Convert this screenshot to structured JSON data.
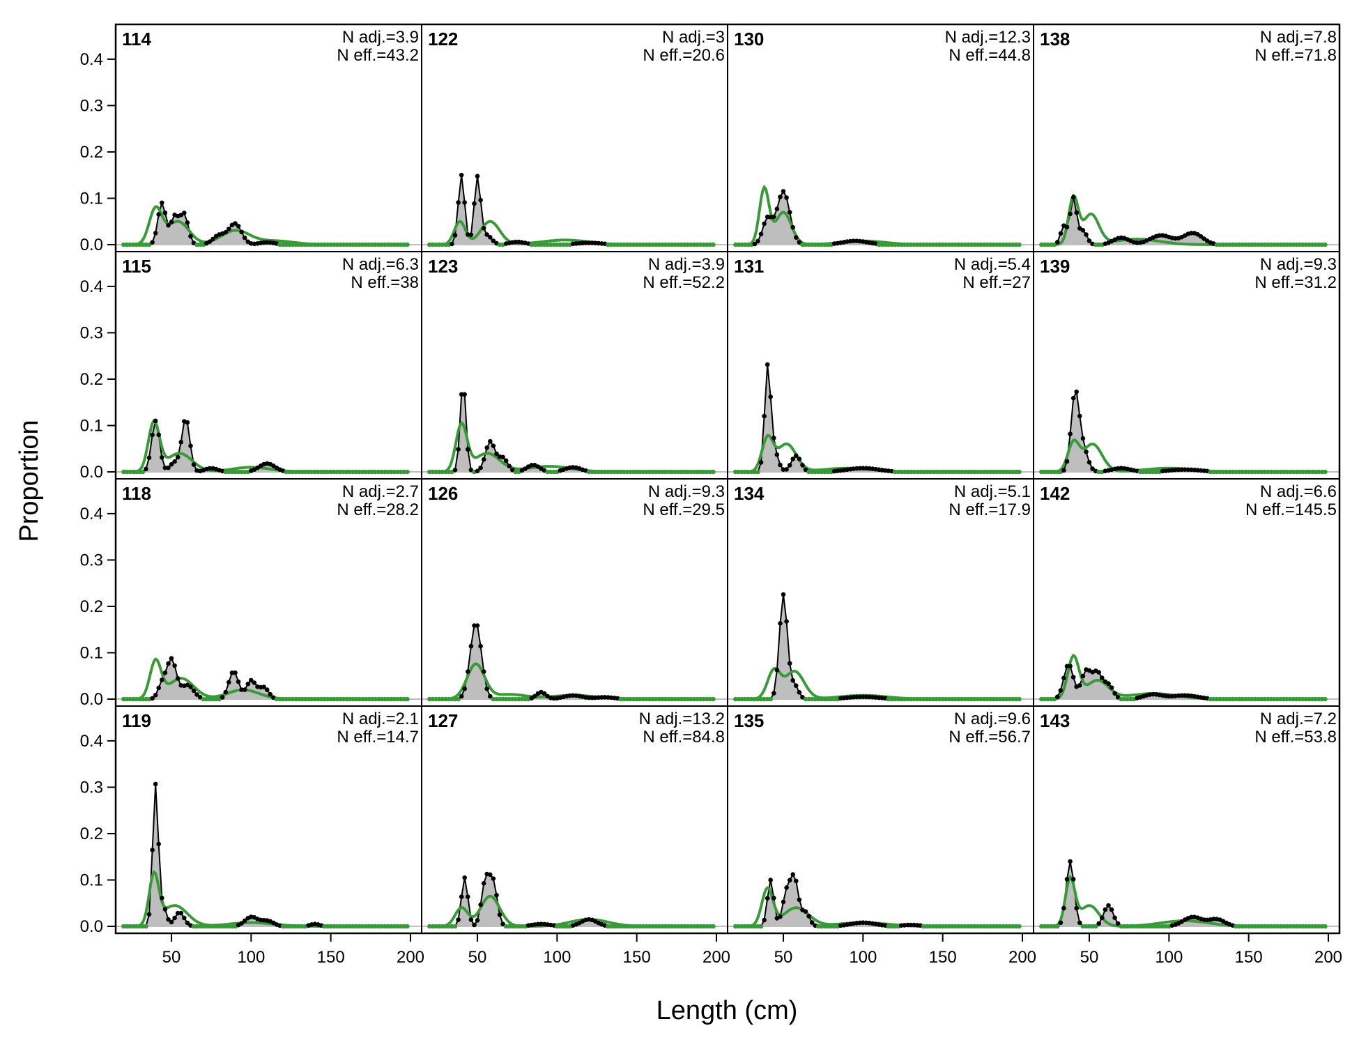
{
  "chart_data": {
    "type": "line",
    "xlabel": "Length (cm)",
    "ylabel": "Proportion",
    "xlim": [
      15,
      207
    ],
    "ylim": [
      -0.015,
      0.475
    ],
    "x_ticks": [
      50,
      100,
      150,
      200
    ],
    "y_ticks": [
      0.0,
      0.1,
      0.2,
      0.3,
      0.4
    ],
    "y_tick_labels": [
      "0.0",
      "0.1",
      "0.2",
      "0.3",
      "0.4"
    ],
    "grid": false,
    "layout": {
      "rows": 4,
      "cols": 4,
      "order": "column-major"
    },
    "colors": {
      "observed": "#000000",
      "observed_fill": "#bebebe",
      "expected": "#3a9a3a",
      "zero_line": "#bebebe"
    },
    "series_names": [
      "observed",
      "expected"
    ],
    "panels": [
      {
        "label": "114",
        "n_adj": "N adj.=3.9",
        "n_eff": "N eff.=43.2",
        "observed_peaks": [
          [
            44,
            0.09,
            2.5
          ],
          [
            52,
            0.06,
            2.5
          ],
          [
            58,
            0.065,
            2.5
          ],
          [
            90,
            0.045,
            4
          ],
          [
            80,
            0.02,
            4
          ],
          [
            110,
            0.005,
            5
          ]
        ],
        "expected_peaks": [
          [
            40,
            0.075,
            4
          ],
          [
            54,
            0.05,
            7
          ],
          [
            90,
            0.03,
            9
          ],
          [
            115,
            0.008,
            12
          ]
        ]
      },
      {
        "label": "115",
        "n_adj": "N adj.=6.3",
        "n_eff": "N eff.=38",
        "observed_peaks": [
          [
            40,
            0.11,
            2.5
          ],
          [
            59,
            0.115,
            2.5
          ],
          [
            52,
            0.02,
            3
          ],
          [
            75,
            0.008,
            4
          ],
          [
            110,
            0.018,
            5
          ]
        ],
        "expected_peaks": [
          [
            39,
            0.105,
            3.5
          ],
          [
            55,
            0.04,
            8
          ],
          [
            100,
            0.01,
            12
          ]
        ]
      },
      {
        "label": "118",
        "n_adj": "N adj.=2.7",
        "n_eff": "N eff.=28.2",
        "observed_peaks": [
          [
            50,
            0.085,
            3
          ],
          [
            44,
            0.03,
            2.5
          ],
          [
            60,
            0.03,
            4
          ],
          [
            89,
            0.06,
            3
          ],
          [
            100,
            0.04,
            3
          ],
          [
            108,
            0.025,
            3
          ]
        ],
        "expected_peaks": [
          [
            40,
            0.08,
            3.5
          ],
          [
            56,
            0.045,
            8
          ],
          [
            95,
            0.02,
            10
          ]
        ]
      },
      {
        "label": "119",
        "n_adj": "N adj.=2.1",
        "n_eff": "N eff.=14.7",
        "observed_peaks": [
          [
            40,
            0.305,
            1.8
          ],
          [
            45,
            0.04,
            2
          ],
          [
            55,
            0.03,
            3
          ],
          [
            100,
            0.02,
            4
          ],
          [
            110,
            0.012,
            4
          ],
          [
            140,
            0.005,
            3
          ]
        ],
        "expected_peaks": [
          [
            39,
            0.105,
            3
          ],
          [
            52,
            0.045,
            8
          ],
          [
            100,
            0.008,
            14
          ]
        ]
      },
      {
        "label": "122",
        "n_adj": "N adj.=3",
        "n_eff": "N eff.=20.6",
        "observed_peaks": [
          [
            40,
            0.15,
            2
          ],
          [
            50,
            0.145,
            2
          ],
          [
            56,
            0.02,
            3
          ],
          [
            75,
            0.006,
            5
          ],
          [
            120,
            0.004,
            8
          ]
        ],
        "expected_peaks": [
          [
            39,
            0.05,
            3.5
          ],
          [
            58,
            0.05,
            6
          ],
          [
            105,
            0.01,
            15
          ]
        ]
      },
      {
        "label": "123",
        "n_adj": "N adj.=3.9",
        "n_eff": "N eff.=52.2",
        "observed_peaks": [
          [
            41,
            0.195,
            1.8
          ],
          [
            58,
            0.065,
            3
          ],
          [
            66,
            0.03,
            3
          ],
          [
            85,
            0.015,
            4
          ],
          [
            110,
            0.01,
            5
          ]
        ],
        "expected_peaks": [
          [
            40,
            0.1,
            3.5
          ],
          [
            56,
            0.04,
            8
          ],
          [
            95,
            0.012,
            14
          ]
        ]
      },
      {
        "label": "126",
        "n_adj": "N adj.=9.3",
        "n_eff": "N eff.=29.5",
        "observed_peaks": [
          [
            49,
            0.165,
            3.5
          ],
          [
            90,
            0.015,
            3
          ],
          [
            110,
            0.008,
            6
          ],
          [
            130,
            0.004,
            6
          ]
        ],
        "expected_peaks": [
          [
            49,
            0.075,
            5.5
          ],
          [
            70,
            0.01,
            10
          ],
          [
            110,
            0.008,
            15
          ]
        ]
      },
      {
        "label": "127",
        "n_adj": "N adj.=13.2",
        "n_eff": "N eff.=84.8",
        "observed_peaks": [
          [
            42,
            0.105,
            2
          ],
          [
            55,
            0.095,
            2.5
          ],
          [
            60,
            0.09,
            2.5
          ],
          [
            120,
            0.015,
            5
          ],
          [
            90,
            0.005,
            6
          ]
        ],
        "expected_peaks": [
          [
            40,
            0.04,
            4
          ],
          [
            58,
            0.065,
            6
          ],
          [
            120,
            0.015,
            12
          ]
        ]
      },
      {
        "label": "130",
        "n_adj": "N adj.=12.3",
        "n_eff": "N eff.=44.8",
        "observed_peaks": [
          [
            50,
            0.115,
            4
          ],
          [
            40,
            0.055,
            3
          ],
          [
            95,
            0.008,
            8
          ]
        ],
        "expected_peaks": [
          [
            38,
            0.12,
            3
          ],
          [
            50,
            0.07,
            5
          ],
          [
            100,
            0.008,
            14
          ]
        ]
      },
      {
        "label": "131",
        "n_adj": "N adj.=5.4",
        "n_eff": "N eff.=27",
        "observed_peaks": [
          [
            40,
            0.195,
            1.8
          ],
          [
            43,
            0.06,
            3
          ],
          [
            58,
            0.035,
            3
          ],
          [
            100,
            0.008,
            10
          ]
        ],
        "expected_peaks": [
          [
            40,
            0.07,
            3.5
          ],
          [
            52,
            0.06,
            6
          ],
          [
            90,
            0.008,
            15
          ]
        ]
      },
      {
        "label": "134",
        "n_adj": "N adj.=5.1",
        "n_eff": "N eff.=17.9",
        "observed_peaks": [
          [
            50,
            0.225,
            2.5
          ],
          [
            57,
            0.03,
            2.5
          ],
          [
            100,
            0.005,
            10
          ]
        ],
        "expected_peaks": [
          [
            44,
            0.06,
            4
          ],
          [
            57,
            0.06,
            6
          ],
          [
            100,
            0.008,
            15
          ]
        ]
      },
      {
        "label": "135",
        "n_adj": "N adj.=9.6",
        "n_eff": "N eff.=56.7",
        "observed_peaks": [
          [
            42,
            0.1,
            2
          ],
          [
            52,
            0.07,
            2.5
          ],
          [
            57,
            0.1,
            2.5
          ],
          [
            64,
            0.03,
            2.5
          ],
          [
            100,
            0.008,
            8
          ],
          [
            130,
            0.003,
            6
          ]
        ],
        "expected_peaks": [
          [
            40,
            0.08,
            3.5
          ],
          [
            58,
            0.04,
            8
          ],
          [
            100,
            0.008,
            15
          ]
        ]
      },
      {
        "label": "138",
        "n_adj": "N adj.=7.8",
        "n_eff": "N eff.=71.8",
        "observed_peaks": [
          [
            40,
            0.1,
            2
          ],
          [
            34,
            0.04,
            2
          ],
          [
            46,
            0.03,
            2.5
          ],
          [
            70,
            0.015,
            5
          ],
          [
            95,
            0.02,
            7
          ],
          [
            115,
            0.025,
            6
          ]
        ],
        "expected_peaks": [
          [
            40,
            0.1,
            3
          ],
          [
            51,
            0.065,
            5
          ],
          [
            80,
            0.012,
            14
          ]
        ]
      },
      {
        "label": "139",
        "n_adj": "N adj.=9.3",
        "n_eff": "N eff.=31.2",
        "observed_peaks": [
          [
            41,
            0.165,
            2.5
          ],
          [
            46,
            0.05,
            3
          ],
          [
            70,
            0.008,
            6
          ],
          [
            110,
            0.005,
            10
          ]
        ],
        "expected_peaks": [
          [
            40,
            0.06,
            3.5
          ],
          [
            52,
            0.06,
            6
          ],
          [
            100,
            0.008,
            15
          ]
        ]
      },
      {
        "label": "142",
        "n_adj": "N adj.=6.6",
        "n_eff": "N eff.=145.5",
        "observed_peaks": [
          [
            37,
            0.075,
            3
          ],
          [
            48,
            0.06,
            3
          ],
          [
            55,
            0.055,
            3
          ],
          [
            62,
            0.03,
            3
          ],
          [
            90,
            0.01,
            6
          ],
          [
            110,
            0.008,
            8
          ]
        ],
        "expected_peaks": [
          [
            40,
            0.09,
            3.5
          ],
          [
            55,
            0.04,
            7
          ],
          [
            90,
            0.012,
            15
          ]
        ]
      },
      {
        "label": "143",
        "n_adj": "N adj.=7.2",
        "n_eff": "N eff.=53.8",
        "observed_peaks": [
          [
            38,
            0.14,
            2.5
          ],
          [
            62,
            0.045,
            3
          ],
          [
            115,
            0.02,
            6
          ],
          [
            130,
            0.015,
            5
          ]
        ],
        "expected_peaks": [
          [
            38,
            0.1,
            3
          ],
          [
            50,
            0.045,
            6
          ],
          [
            110,
            0.012,
            15
          ]
        ]
      }
    ]
  }
}
